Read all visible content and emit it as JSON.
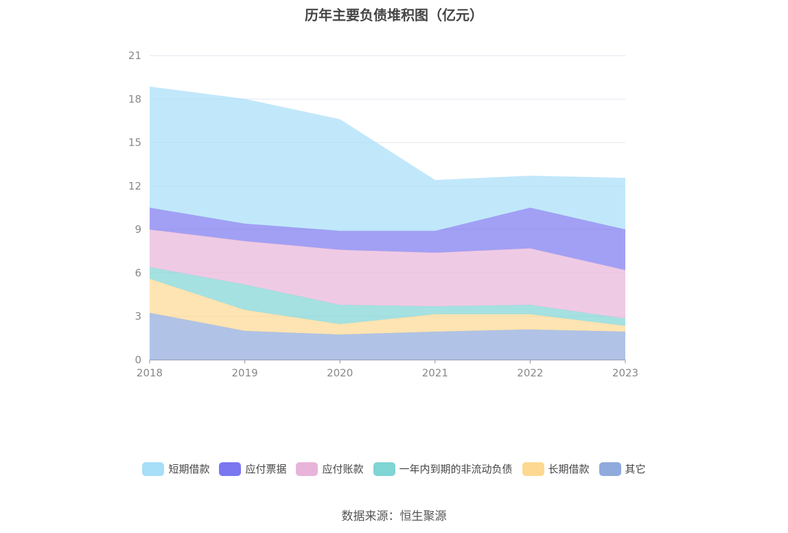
{
  "title": "历年主要负债堆积图（亿元）",
  "source": "数据来源：恒生聚源",
  "chart_data": {
    "type": "area",
    "stacked": true,
    "title": "历年主要负债堆积图（亿元）",
    "x": [
      "2018",
      "2019",
      "2020",
      "2021",
      "2022",
      "2023"
    ],
    "ylim": [
      0,
      21
    ],
    "yticks": [
      "0",
      "3",
      "6",
      "9",
      "12",
      "15",
      "18",
      "21"
    ],
    "grid": true,
    "legend_position": "bottom",
    "series": [
      {
        "name": "其它",
        "color": "#8faadc",
        "values": [
          3.25,
          2.0,
          1.75,
          1.95,
          2.1,
          1.95
        ]
      },
      {
        "name": "长期借款",
        "color": "#fdd891",
        "values": [
          2.35,
          1.45,
          0.72,
          1.2,
          1.05,
          0.4
        ]
      },
      {
        "name": "一年内到期的非流动负债",
        "color": "#7fd4d4",
        "values": [
          0.8,
          1.75,
          1.33,
          0.55,
          0.65,
          0.5
        ]
      },
      {
        "name": "应付账款",
        "color": "#e8b4d9",
        "values": [
          2.6,
          3.0,
          3.8,
          3.7,
          3.9,
          3.35
        ]
      },
      {
        "name": "应付票据",
        "color": "#7a77f0",
        "values": [
          1.5,
          1.2,
          1.3,
          1.5,
          2.8,
          2.8
        ]
      },
      {
        "name": "短期借款",
        "color": "#a7def8",
        "values": [
          8.35,
          8.6,
          7.7,
          3.5,
          2.2,
          3.55
        ]
      }
    ],
    "legend_order": [
      "短期借款",
      "应付票据",
      "应付账款",
      "一年内到期的非流动负债",
      "长期借款",
      "其它"
    ]
  }
}
